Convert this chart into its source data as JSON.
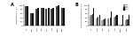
{
  "panel_A": {
    "title": "A",
    "categories": [
      "AK",
      "ATM",
      "CAZ",
      "CIP",
      "FEP",
      "GN",
      "MEM",
      "TZP"
    ],
    "series": [
      {
        "label": "2011",
        "color": "#444444",
        "values": [
          96,
          60,
          84,
          86,
          85,
          84,
          98,
          87
        ]
      },
      {
        "label": "2012",
        "color": "#111111",
        "values": [
          97,
          64,
          87,
          87,
          87,
          87,
          99,
          89
        ]
      }
    ],
    "ylabel": "Susceptibility (%)",
    "ylim": [
      0,
      105
    ],
    "yticks": [
      0,
      20,
      40,
      60,
      80,
      100
    ]
  },
  "panel_B": {
    "title": "B",
    "categories": [
      "AK",
      "CAZ",
      "CIP",
      "FEP",
      "GN",
      "MEM",
      "TZP"
    ],
    "series": [
      {
        "label": "2011",
        "color": "#aaaaaa",
        "values": [
          50,
          38,
          28,
          36,
          42,
          4,
          28
        ]
      },
      {
        "label": "2012",
        "color": "#777777",
        "values": [
          54,
          40,
          30,
          38,
          45,
          6,
          30
        ]
      },
      {
        "label": "2013",
        "color": "#444444",
        "values": [
          58,
          43,
          33,
          40,
          48,
          8,
          33
        ]
      },
      {
        "label": "2014",
        "color": "#111111",
        "values": [
          88,
          53,
          38,
          72,
          52,
          52,
          52
        ]
      }
    ],
    "ylabel": "Annual susceptibility (%)",
    "ylim": [
      0,
      105
    ],
    "yticks": [
      0,
      20,
      40,
      60,
      80,
      100
    ]
  }
}
